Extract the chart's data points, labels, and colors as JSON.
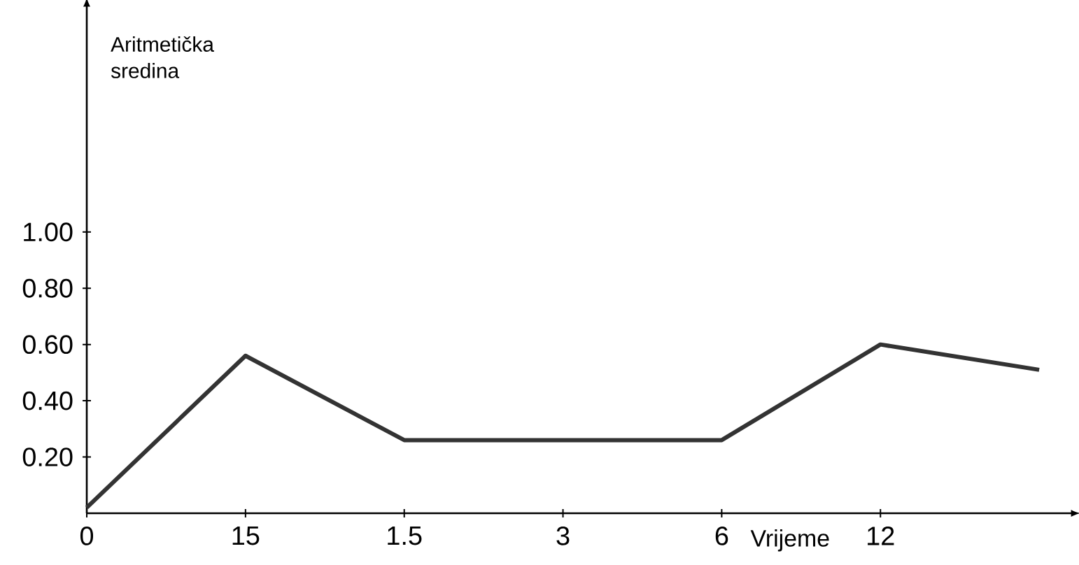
{
  "chart_data": {
    "type": "line",
    "xlabel": "Vrijeme",
    "ylabel": "Aritmetička sredina",
    "categories": [
      "0",
      "15",
      "1.5",
      "3",
      "6",
      "12",
      null
    ],
    "values": [
      0.02,
      0.56,
      0.26,
      0.26,
      0.26,
      0.6,
      0.51
    ],
    "color": "#333333",
    "ylim": [
      0,
      1.8
    ],
    "yticks": [
      {
        "value": 0.2,
        "label": "0.20"
      },
      {
        "value": 0.4,
        "label": "0.40"
      },
      {
        "value": 0.6,
        "label": "0.60"
      },
      {
        "value": 0.8,
        "label": "0.80"
      },
      {
        "value": 1.0,
        "label": "1.00"
      }
    ],
    "grid": false,
    "marker": "none",
    "line_style": "solid"
  }
}
